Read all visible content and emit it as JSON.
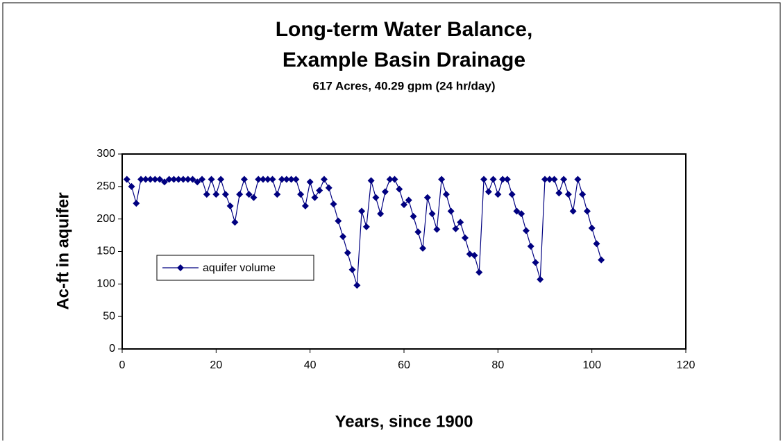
{
  "chart_data": {
    "type": "line",
    "title": "Long-term Water Balance,",
    "title_line2": "Example Basin Drainage",
    "subtitle": "617 Acres, 40.29 gpm (24 hr/day)",
    "x_label": "Years, since 1900",
    "y_label": "Ac-ft in aquifer",
    "x": [
      1,
      2,
      3,
      4,
      5,
      6,
      7,
      8,
      9,
      10,
      11,
      12,
      13,
      14,
      15,
      16,
      17,
      18,
      19,
      20,
      21,
      22,
      23,
      24,
      25,
      26,
      27,
      28,
      29,
      30,
      31,
      32,
      33,
      34,
      35,
      36,
      37,
      38,
      39,
      40,
      41,
      42,
      43,
      44,
      45,
      46,
      47,
      48,
      49,
      50,
      51,
      52,
      53,
      54,
      55,
      56,
      57,
      58,
      59,
      60,
      61,
      62,
      63,
      64,
      65,
      66,
      67,
      68,
      69,
      70,
      71,
      72,
      73,
      74,
      75,
      76,
      77,
      78,
      79,
      80,
      81,
      82,
      83,
      84,
      85,
      86,
      87,
      88,
      89,
      90,
      91,
      92,
      93,
      94,
      95,
      96,
      97,
      98,
      99,
      100,
      101,
      102
    ],
    "series": [
      {
        "name": "aquifer volume",
        "color": "#000080",
        "values": [
          261,
          250,
          224,
          261,
          261,
          261,
          261,
          261,
          257,
          261,
          261,
          261,
          261,
          261,
          261,
          257,
          261,
          238,
          261,
          238,
          261,
          238,
          220,
          195,
          238,
          261,
          238,
          233,
          261,
          261,
          261,
          261,
          238,
          261,
          261,
          261,
          261,
          238,
          220,
          257,
          233,
          244,
          261,
          248,
          223,
          197,
          173,
          148,
          122,
          98,
          212,
          188,
          259,
          233,
          208,
          242,
          261,
          261,
          246,
          222,
          229,
          204,
          180,
          155,
          233,
          208,
          184,
          261,
          238,
          212,
          185,
          195,
          171,
          146,
          144,
          118,
          261,
          242,
          261,
          238,
          261,
          261,
          238,
          212,
          208,
          182,
          158,
          133,
          107,
          261,
          261,
          261,
          240,
          261,
          238,
          212,
          261,
          238,
          212,
          186,
          162,
          137
        ]
      }
    ],
    "xlim": [
      0,
      120
    ],
    "xticks": [
      0,
      20,
      40,
      60,
      80,
      100,
      120
    ],
    "ylim": [
      0,
      300
    ],
    "yticks": [
      0,
      50,
      100,
      150,
      200,
      250,
      300
    ],
    "legend": "left"
  }
}
